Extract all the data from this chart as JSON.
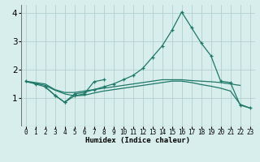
{
  "xlabel": "Humidex (Indice chaleur)",
  "xlim": [
    -0.5,
    23.5
  ],
  "ylim": [
    0,
    4.3
  ],
  "yticks": [
    1,
    2,
    3,
    4
  ],
  "xticks": [
    0,
    1,
    2,
    3,
    4,
    5,
    6,
    7,
    8,
    9,
    10,
    11,
    12,
    13,
    14,
    15,
    16,
    17,
    18,
    19,
    20,
    21,
    22,
    23
  ],
  "bg_color": "#d8eeed",
  "grid_color": "#b2d0ce",
  "line_color": "#1e7868",
  "lines": [
    {
      "x": [
        0,
        1,
        2,
        3,
        4,
        5,
        6,
        7,
        8,
        9,
        10,
        11,
        12,
        13,
        14,
        15,
        16,
        17,
        18,
        19,
        20,
        21,
        22
      ],
      "y": [
        1.6,
        1.55,
        1.5,
        1.3,
        1.2,
        1.2,
        1.25,
        1.3,
        1.35,
        1.4,
        1.45,
        1.5,
        1.55,
        1.6,
        1.65,
        1.65,
        1.65,
        1.62,
        1.6,
        1.58,
        1.55,
        1.5,
        1.45
      ],
      "marker": false
    },
    {
      "x": [
        0,
        1,
        2,
        3,
        4,
        5,
        6,
        7,
        8,
        9,
        10,
        11,
        12,
        13,
        14,
        15,
        16,
        17,
        18,
        19,
        20,
        21,
        22,
        23
      ],
      "y": [
        1.6,
        1.5,
        1.4,
        1.1,
        0.85,
        1.15,
        1.2,
        1.3,
        1.4,
        1.5,
        1.65,
        1.8,
        2.05,
        2.45,
        2.85,
        3.4,
        4.05,
        3.5,
        2.95,
        2.5,
        1.6,
        1.55,
        0.75,
        0.65
      ],
      "marker": true
    },
    {
      "x": [
        0,
        1,
        2,
        3,
        4,
        5,
        6,
        7,
        8,
        9,
        10,
        11,
        12,
        13,
        14,
        15,
        16,
        17,
        18,
        19,
        20,
        21,
        22,
        23
      ],
      "y": [
        1.58,
        1.52,
        1.45,
        1.28,
        1.15,
        1.08,
        1.1,
        1.18,
        1.25,
        1.3,
        1.35,
        1.4,
        1.45,
        1.5,
        1.55,
        1.6,
        1.6,
        1.55,
        1.48,
        1.42,
        1.35,
        1.25,
        0.78,
        0.65
      ],
      "marker": false
    },
    {
      "x": [
        2,
        3,
        4,
        5,
        6,
        7,
        8
      ],
      "y": [
        1.4,
        1.1,
        0.85,
        1.08,
        1.15,
        1.58,
        1.65
      ],
      "marker": true
    }
  ]
}
